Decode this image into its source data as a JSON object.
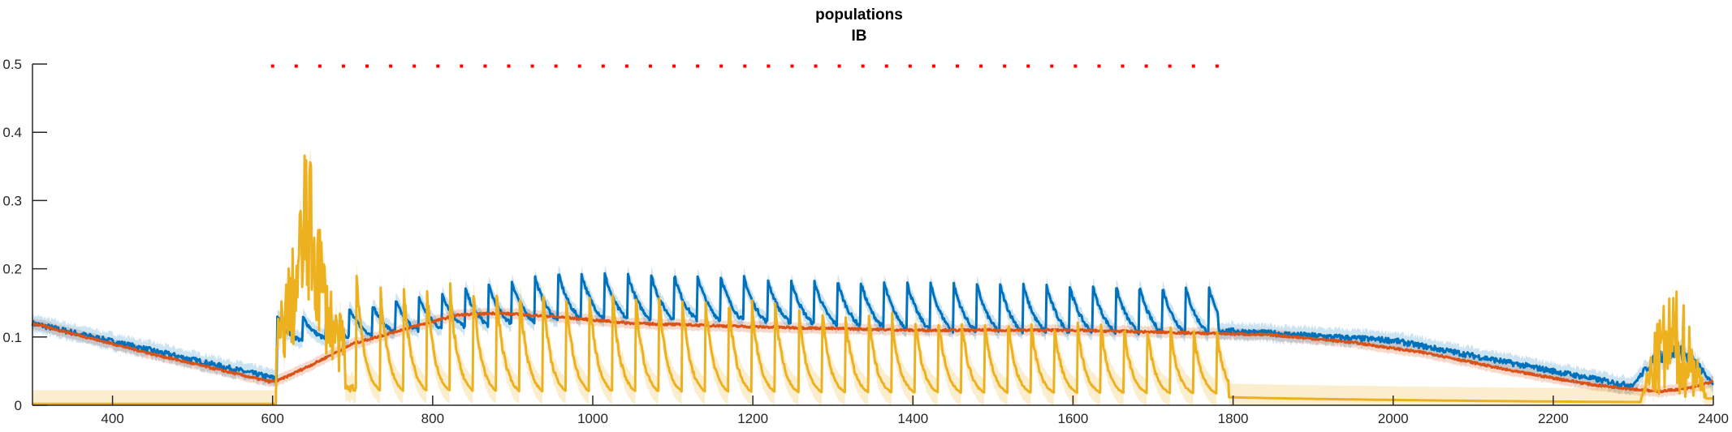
{
  "chart_data": {
    "type": "line",
    "title": "populations",
    "subtitle": "IB",
    "xlabel": "",
    "ylabel": "",
    "xlim": [
      300,
      2400
    ],
    "ylim": [
      0,
      0.5
    ],
    "x_ticks": [
      400,
      600,
      800,
      1000,
      1200,
      1400,
      1600,
      1800,
      2000,
      2200,
      2400
    ],
    "y_ticks": [
      0,
      0.1,
      0.2,
      0.3,
      0.4,
      0.5
    ],
    "y_tick_labels": [
      "0",
      "0.1",
      "0.2",
      "0.3",
      "0.4",
      "0.5"
    ],
    "grid": false,
    "legend": "none",
    "stimulus_marker": {
      "y": 0.497,
      "x_start": 600,
      "x_end": 1780,
      "count": 41,
      "color": "#ff0000"
    },
    "series": [
      {
        "color": "#0072bd",
        "baseline_points": [
          [
            300,
            0.12
          ],
          [
            600,
            0.04
          ]
        ],
        "pulse_train": {
          "x_start": 608,
          "x_end": 1770,
          "count": 41,
          "peak_start": 0.125,
          "peak_mid": 0.195,
          "peak_end": 0.17,
          "decay_width": 20
        },
        "recovery_points": [
          [
            1780,
            0.11
          ],
          [
            2000,
            0.095
          ],
          [
            2200,
            0.05
          ],
          [
            2290,
            0.03
          ]
        ],
        "late_burst": {
          "x": [
            2300,
            2400
          ],
          "peak": 0.09
        }
      },
      {
        "color": "#d95319",
        "points": [
          [
            300,
            0.12
          ],
          [
            450,
            0.075
          ],
          [
            595,
            0.035
          ],
          [
            605,
            0.035
          ],
          [
            650,
            0.06
          ],
          [
            700,
            0.09
          ],
          [
            760,
            0.11
          ],
          [
            830,
            0.132
          ],
          [
            880,
            0.135
          ],
          [
            950,
            0.13
          ],
          [
            1050,
            0.12
          ],
          [
            1200,
            0.115
          ],
          [
            1400,
            0.11
          ],
          [
            1600,
            0.11
          ],
          [
            1780,
            0.105
          ],
          [
            1850,
            0.103
          ],
          [
            1950,
            0.092
          ],
          [
            2050,
            0.075
          ],
          [
            2150,
            0.05
          ],
          [
            2250,
            0.03
          ],
          [
            2330,
            0.02
          ],
          [
            2370,
            0.025
          ],
          [
            2400,
            0.035
          ]
        ]
      },
      {
        "color": "#edb120",
        "baseline": 0.002,
        "initial_burst": {
          "x": [
            605,
            690
          ],
          "peaks": [
            0.12,
            0.2,
            0.25,
            0.39,
            0.33,
            0.22,
            0.15,
            0.12
          ]
        },
        "pulse_train": {
          "x_start": 705,
          "x_end": 1780,
          "count": 38,
          "peak_start": 0.19,
          "peak_end": 0.1,
          "decay_width": 10
        },
        "post_level": 0.01,
        "late_burst": {
          "x": [
            2310,
            2400
          ],
          "peak": 0.16
        }
      }
    ]
  }
}
